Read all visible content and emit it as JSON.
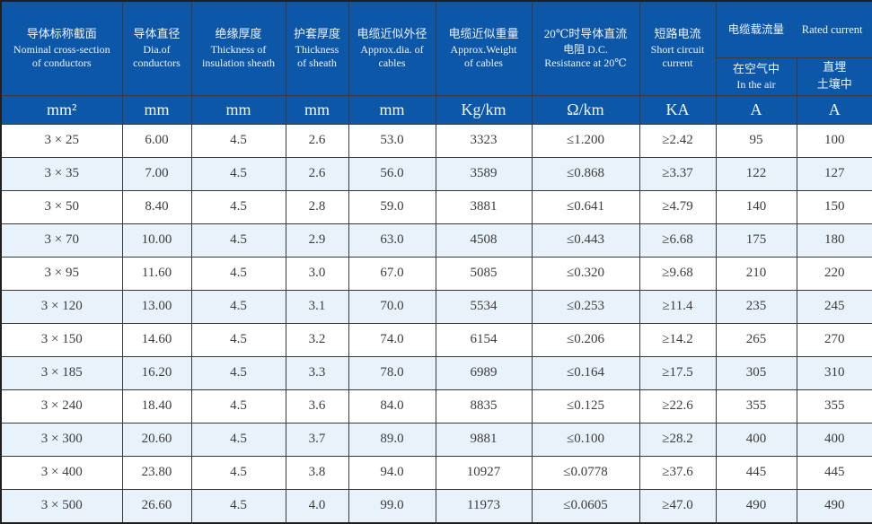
{
  "table": {
    "header": {
      "columns": [
        {
          "zh": "导体标称截面",
          "en1": "Nominal cross-section",
          "en2": "of conductors",
          "unit": "mm²"
        },
        {
          "zh": "导体直径",
          "en1": "Dia.of",
          "en2": "conductors",
          "unit": "mm"
        },
        {
          "zh": "绝缘厚度",
          "en1": "Thickness of",
          "en2": "insulation sheath",
          "unit": "mm"
        },
        {
          "zh": "护套厚度",
          "en1": "Thickness",
          "en2": "of sheath",
          "unit": "mm"
        },
        {
          "zh": "电缆近似外径",
          "en1": "Approx.dia. of",
          "en2": "cables",
          "unit": "mm"
        },
        {
          "zh": "电缆近似重量",
          "en1": "Approx.Weight",
          "en2": "of cables",
          "unit": "Kg/km"
        },
        {
          "zh": "20℃时导体直流",
          "en1": "电阻 D.C.",
          "en2": "Resistance at 20℃",
          "unit": "Ω/km"
        },
        {
          "zh": "短路电流",
          "en1": "Short circuit",
          "en2": "current",
          "unit": "KA"
        }
      ],
      "ampacity_group": {
        "zh_title": "电缆载流量",
        "en_title": "Rated current",
        "sub": [
          {
            "line1": "在空气中",
            "line2": "In the air",
            "unit": "A"
          },
          {
            "line1": "直埋",
            "line2": "土壤中",
            "unit": "A"
          }
        ]
      }
    },
    "rows": [
      [
        "3 × 25",
        "6.00",
        "4.5",
        "2.6",
        "53.0",
        "3323",
        "≤1.200",
        "≥2.42",
        "95",
        "100"
      ],
      [
        "3 × 35",
        "7.00",
        "4.5",
        "2.6",
        "56.0",
        "3589",
        "≤0.868",
        "≥3.37",
        "122",
        "127"
      ],
      [
        "3 × 50",
        "8.40",
        "4.5",
        "2.8",
        "59.0",
        "3881",
        "≤0.641",
        "≥4.79",
        "140",
        "150"
      ],
      [
        "3 × 70",
        "10.00",
        "4.5",
        "2.9",
        "63.0",
        "4508",
        "≤0.443",
        "≥6.68",
        "175",
        "180"
      ],
      [
        "3 × 95",
        "11.60",
        "4.5",
        "3.0",
        "67.0",
        "5085",
        "≤0.320",
        "≥9.68",
        "210",
        "220"
      ],
      [
        "3 × 120",
        "13.00",
        "4.5",
        "3.1",
        "70.0",
        "5534",
        "≤0.253",
        "≥11.4",
        "235",
        "245"
      ],
      [
        "3 × 150",
        "14.60",
        "4.5",
        "3.2",
        "74.0",
        "6154",
        "≤0.206",
        "≥14.2",
        "265",
        "270"
      ],
      [
        "3 × 185",
        "16.20",
        "4.5",
        "3.3",
        "78.0",
        "6989",
        "≤0.164",
        "≥17.5",
        "305",
        "310"
      ],
      [
        "3 × 240",
        "18.40",
        "4.5",
        "3.6",
        "84.0",
        "8835",
        "≤0.125",
        "≥22.6",
        "355",
        "355"
      ],
      [
        "3 × 300",
        "20.60",
        "4.5",
        "3.7",
        "89.0",
        "9881",
        "≤0.100",
        "≥28.2",
        "400",
        "400"
      ],
      [
        "3 × 400",
        "23.80",
        "4.5",
        "3.8",
        "94.0",
        "10927",
        "≤0.0778",
        "≥37.6",
        "445",
        "445"
      ],
      [
        "3 × 500",
        "26.60",
        "4.5",
        "4.0",
        "99.0",
        "11973",
        "≤0.0605",
        "≥47.0",
        "490",
        "490"
      ]
    ],
    "colors": {
      "header_blue": "#0d57a9",
      "stripe_blue": "#e7f2fb",
      "border": "#3a3a3a",
      "data_text": "#3d3d3d",
      "header_text": "#edf3fc"
    }
  }
}
